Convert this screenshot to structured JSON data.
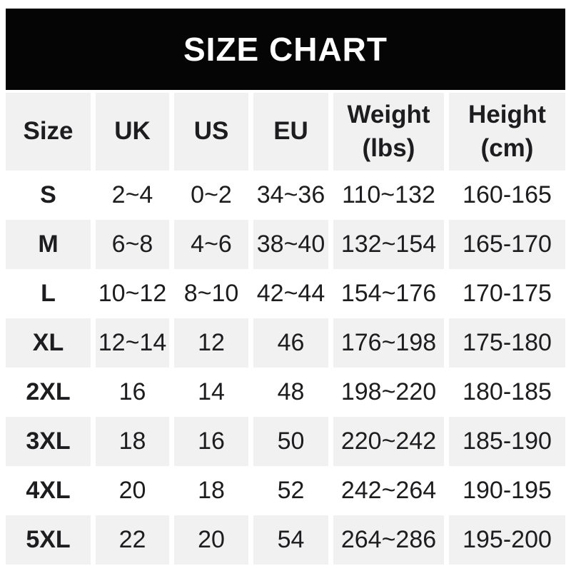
{
  "banner": {
    "title": "SIZE CHART"
  },
  "table": {
    "headers": [
      {
        "id": "size",
        "label": "Size",
        "lines": [
          "Size"
        ]
      },
      {
        "id": "uk",
        "label": "UK",
        "lines": [
          "UK"
        ]
      },
      {
        "id": "us",
        "label": "US",
        "lines": [
          "US"
        ]
      },
      {
        "id": "eu",
        "label": "EU",
        "lines": [
          "EU"
        ]
      },
      {
        "id": "weight",
        "label": "Weight (lbs)",
        "lines": [
          "Weight",
          "(lbs)"
        ]
      },
      {
        "id": "height",
        "label": "Height (cm)",
        "lines": [
          "Height",
          "(cm)"
        ]
      }
    ],
    "rows": [
      [
        "S",
        "2~4",
        "0~2",
        "34~36",
        "110~132",
        "160-165"
      ],
      [
        "M",
        "6~8",
        "4~6",
        "38~40",
        "132~154",
        "165-170"
      ],
      [
        "L",
        "10~12",
        "8~10",
        "42~44",
        "154~176",
        "170-175"
      ],
      [
        "XL",
        "12~14",
        "12",
        "46",
        "176~198",
        "175-180"
      ],
      [
        "2XL",
        "16",
        "14",
        "48",
        "198~220",
        "180-185"
      ],
      [
        "3XL",
        "18",
        "16",
        "50",
        "220~242",
        "185-190"
      ],
      [
        "4XL",
        "20",
        "18",
        "52",
        "242~264",
        "190-195"
      ],
      [
        "5XL",
        "22",
        "20",
        "54",
        "264~286",
        "195-200"
      ]
    ]
  },
  "colors": {
    "banner_bg": "#050505",
    "banner_text": "#ffffff",
    "row_stripe": "#f1f1f2",
    "row_alt": "#ffffff",
    "text": "#1d1d1f"
  },
  "chart_data": {
    "type": "table",
    "title": "SIZE CHART",
    "columns": [
      "Size",
      "UK",
      "US",
      "EU",
      "Weight (lbs)",
      "Height (cm)"
    ],
    "rows": [
      [
        "S",
        "2~4",
        "0~2",
        "34~36",
        "110~132",
        "160-165"
      ],
      [
        "M",
        "6~8",
        "4~6",
        "38~40",
        "132~154",
        "165-170"
      ],
      [
        "L",
        "10~12",
        "8~10",
        "42~44",
        "154~176",
        "170-175"
      ],
      [
        "XL",
        "12~14",
        "12",
        "46",
        "176~198",
        "175-180"
      ],
      [
        "2XL",
        "16",
        "14",
        "48",
        "198~220",
        "180-185"
      ],
      [
        "3XL",
        "18",
        "16",
        "50",
        "220~242",
        "185-190"
      ],
      [
        "4XL",
        "20",
        "18",
        "52",
        "242~264",
        "190-195"
      ],
      [
        "5XL",
        "22",
        "20",
        "54",
        "264~286",
        "195-200"
      ]
    ],
    "layout": {
      "striped": true,
      "stripe_starts_at_row": 2,
      "header_background": "#f1f1f2"
    }
  }
}
